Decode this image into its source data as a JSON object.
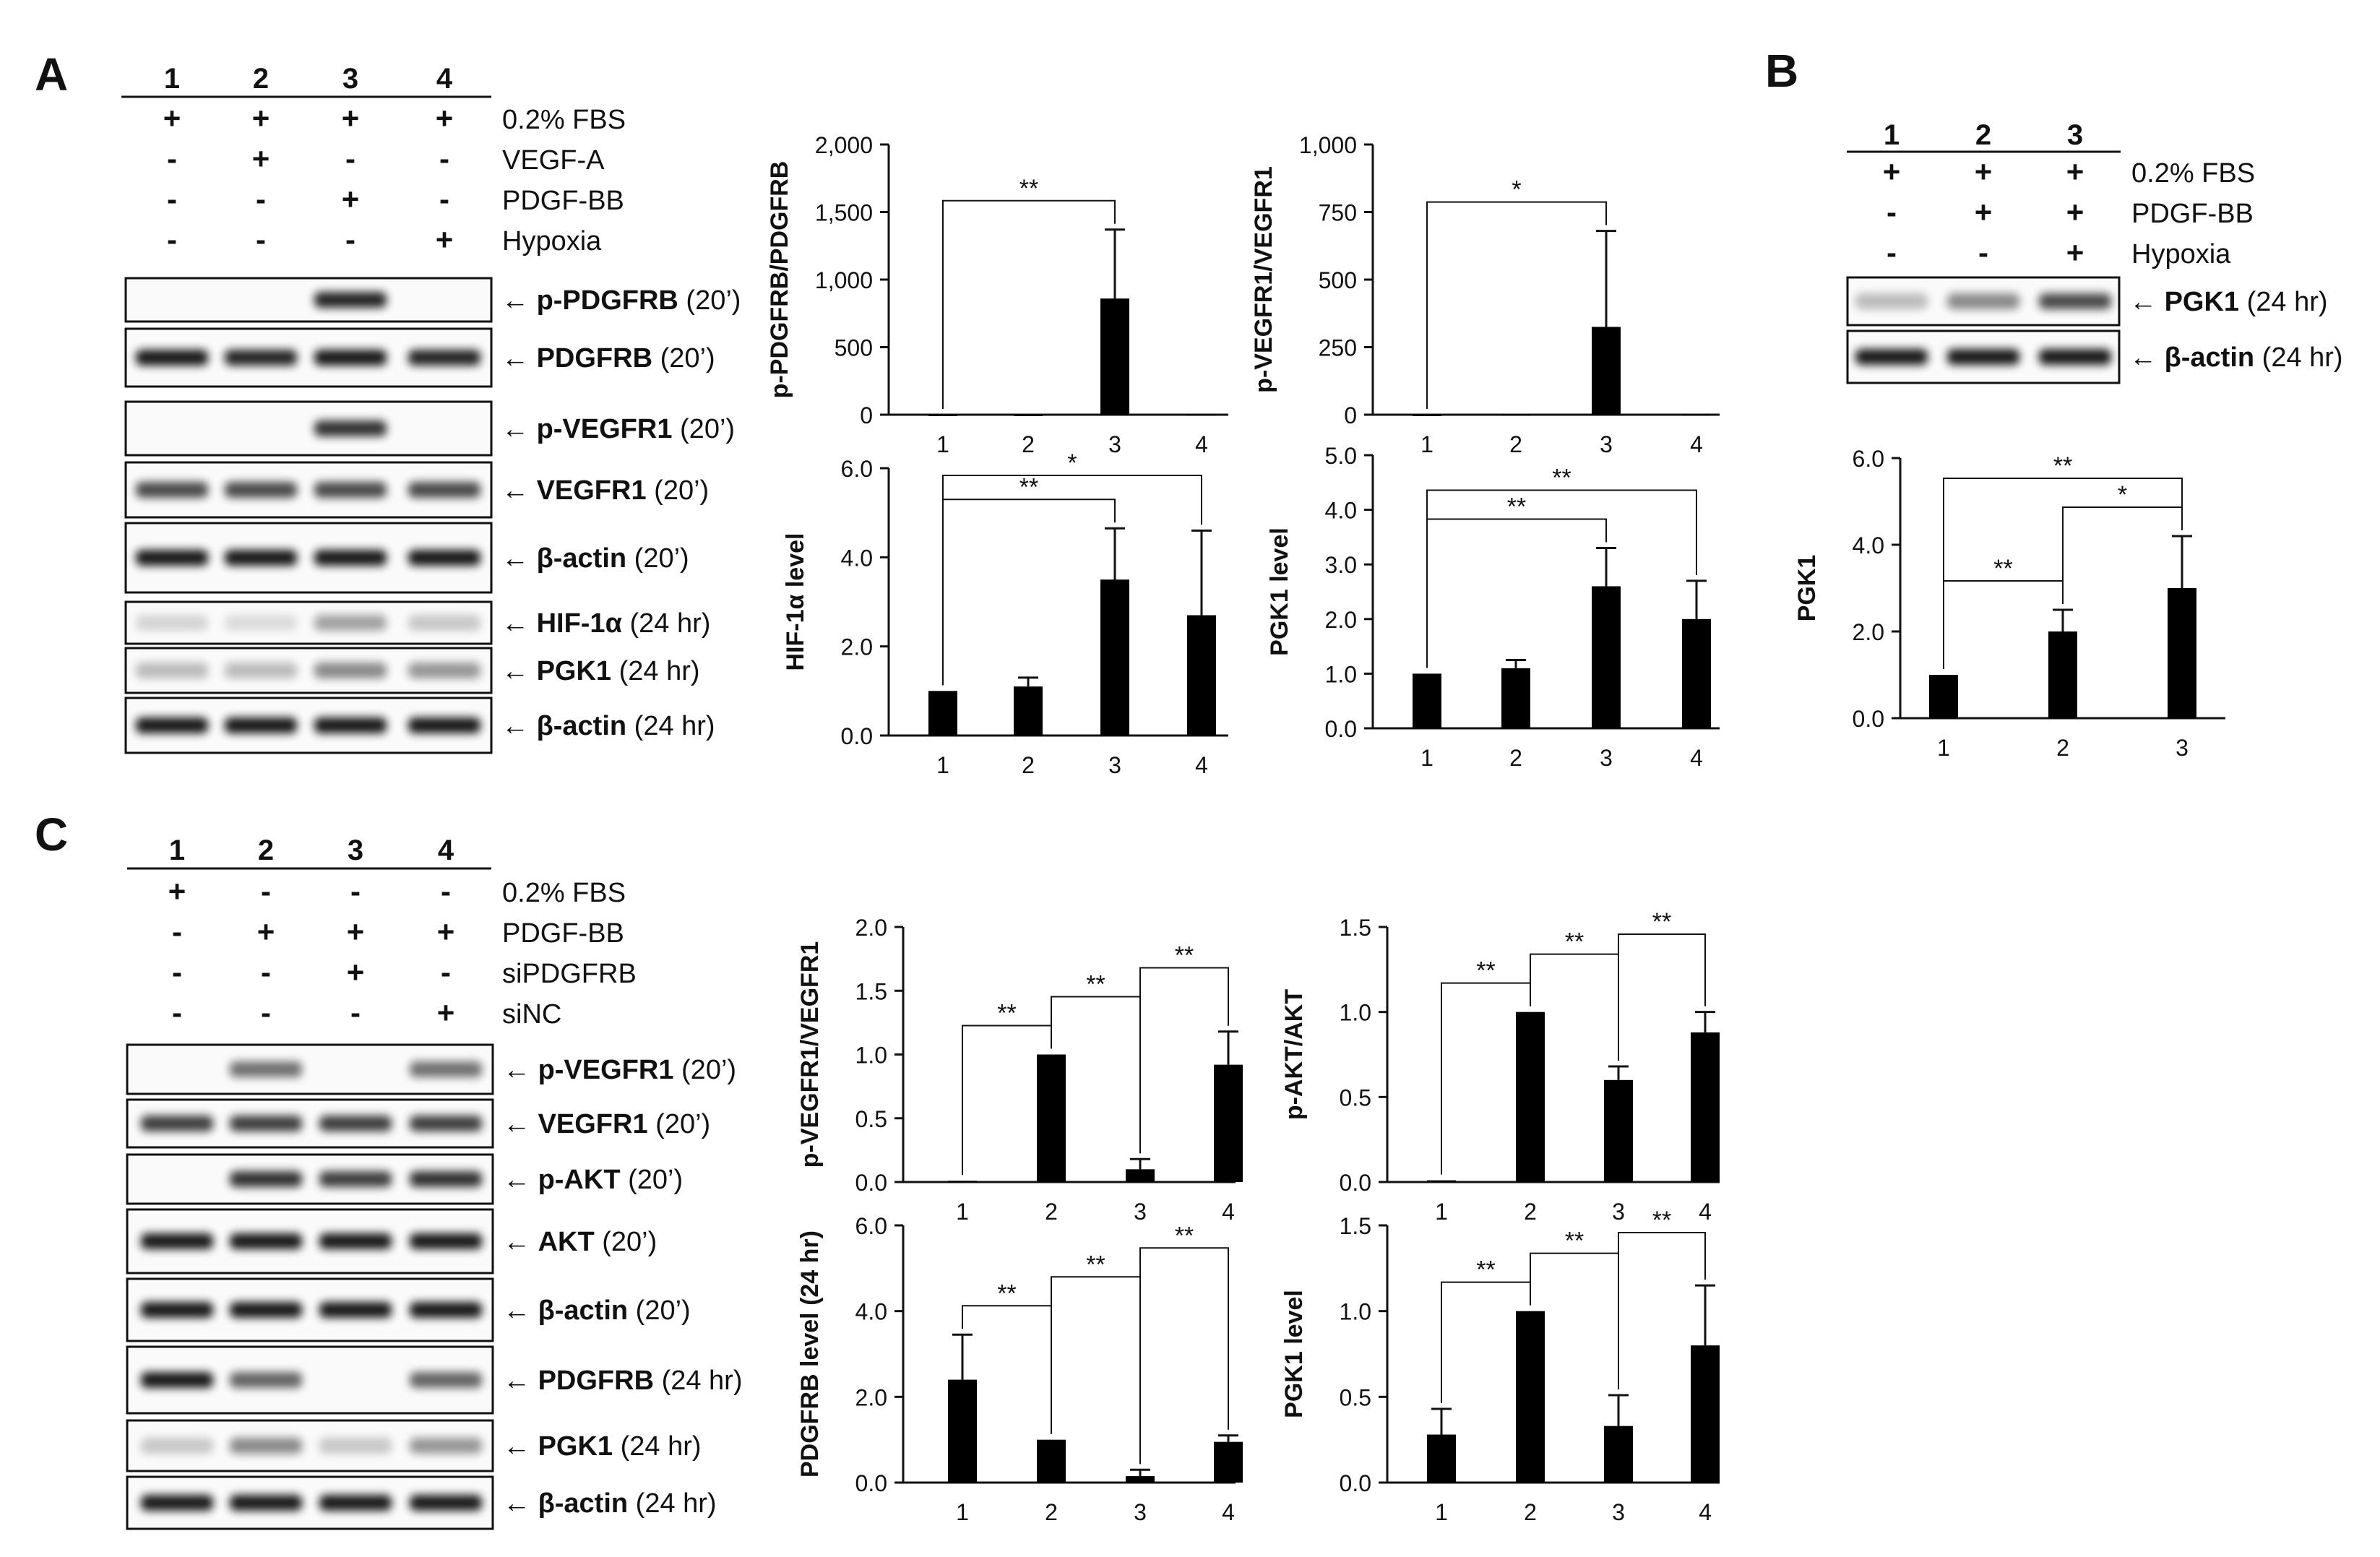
{
  "panel_A": {
    "letter": "A",
    "lanes": [
      "1",
      "2",
      "3",
      "4"
    ],
    "treatments": [
      {
        "name": "0.2% FBS",
        "signs": [
          "+",
          "+",
          "+",
          "+"
        ]
      },
      {
        "name": "VEGF-A",
        "signs": [
          "-",
          "+",
          "-",
          "-"
        ]
      },
      {
        "name": "PDGF-BB",
        "signs": [
          "-",
          "-",
          "+",
          "-"
        ]
      },
      {
        "name": "Hypoxia",
        "signs": [
          "-",
          "-",
          "-",
          "+"
        ]
      }
    ],
    "blots": [
      {
        "label": "p-PDGFRB",
        "time": "(20’)",
        "bands": [
          0,
          0,
          0.85,
          0
        ]
      },
      {
        "label": "PDGFRB",
        "time": "(20’)",
        "bands": [
          0.9,
          0.85,
          0.9,
          0.85
        ]
      },
      {
        "label": "p-VEGFR1",
        "time": "(20’)",
        "bands": [
          0,
          0,
          0.8,
          0
        ]
      },
      {
        "label": "VEGFR1",
        "time": "(20’)",
        "bands": [
          0.7,
          0.7,
          0.7,
          0.7
        ]
      },
      {
        "label": "β-actin",
        "time": "(20’)",
        "bands": [
          0.9,
          0.9,
          0.9,
          0.9
        ]
      },
      {
        "label": "HIF-1α",
        "time": "(24 hr)",
        "bands": [
          0.15,
          0.12,
          0.35,
          0.2
        ]
      },
      {
        "label": "PGK1",
        "time": "(24 hr)",
        "bands": [
          0.25,
          0.25,
          0.45,
          0.4
        ]
      },
      {
        "label": "β-actin",
        "time": "(24 hr)",
        "bands": [
          0.9,
          0.9,
          0.9,
          0.9
        ]
      }
    ]
  },
  "panel_B": {
    "letter": "B",
    "lanes": [
      "1",
      "2",
      "3"
    ],
    "treatments": [
      {
        "name": "0.2% FBS",
        "signs": [
          "+",
          "+",
          "+"
        ]
      },
      {
        "name": "PDGF-BB",
        "signs": [
          "-",
          "+",
          "+"
        ]
      },
      {
        "name": "Hypoxia",
        "signs": [
          "-",
          "-",
          "+"
        ]
      }
    ],
    "blots": [
      {
        "label": "PGK1",
        "time": "(24 hr)",
        "bands": [
          0.25,
          0.45,
          0.7
        ]
      },
      {
        "label": "β-actin",
        "time": "(24 hr)",
        "bands": [
          0.9,
          0.9,
          0.9
        ]
      }
    ]
  },
  "panel_C": {
    "letter": "C",
    "lanes": [
      "1",
      "2",
      "3",
      "4"
    ],
    "treatments": [
      {
        "name": "0.2% FBS",
        "signs": [
          "+",
          "-",
          "-",
          "-"
        ]
      },
      {
        "name": "PDGF-BB",
        "signs": [
          "-",
          "+",
          "+",
          "+"
        ]
      },
      {
        "name": "siPDGFRB",
        "signs": [
          "-",
          "-",
          "+",
          "-"
        ]
      },
      {
        "name": "siNC",
        "signs": [
          "-",
          "-",
          "-",
          "+"
        ]
      }
    ],
    "blots": [
      {
        "label": "p-VEGFR1",
        "time": "(20’)",
        "bands": [
          0,
          0.55,
          0,
          0.55
        ]
      },
      {
        "label": "VEGFR1",
        "time": "(20’)",
        "bands": [
          0.75,
          0.75,
          0.75,
          0.75
        ]
      },
      {
        "label": "p-AKT",
        "time": "(20’)",
        "bands": [
          0,
          0.8,
          0.75,
          0.8
        ]
      },
      {
        "label": "AKT",
        "time": "(20’)",
        "bands": [
          0.9,
          0.9,
          0.9,
          0.9
        ]
      },
      {
        "label": "β-actin",
        "time": "(20’)",
        "bands": [
          0.9,
          0.9,
          0.9,
          0.9
        ]
      },
      {
        "label": "PDGFRB",
        "time": "(24 hr)",
        "bands": [
          0.9,
          0.6,
          0,
          0.6
        ]
      },
      {
        "label": "PGK1",
        "time": "(24 hr)",
        "bands": [
          0.2,
          0.45,
          0.2,
          0.4
        ]
      },
      {
        "label": "β-actin",
        "time": "(24 hr)",
        "bands": [
          0.9,
          0.9,
          0.9,
          0.9
        ]
      }
    ]
  },
  "chart_data": [
    {
      "id": "A1",
      "type": "bar",
      "categories": [
        "1",
        "2",
        "3",
        "4"
      ],
      "values": [
        0,
        0,
        860,
        5
      ],
      "errors": [
        0,
        0,
        510,
        0
      ],
      "ylabel": "p-PDGFRB/PDGFRB",
      "ylim": [
        0,
        2000
      ],
      "yticks": [
        "0",
        "500",
        "1,000",
        "1,500",
        "2,000"
      ],
      "significance": [
        {
          "from": 1,
          "to": 3,
          "label": "**"
        }
      ]
    },
    {
      "id": "A2",
      "type": "bar",
      "categories": [
        "1",
        "2",
        "3",
        "4"
      ],
      "values": [
        0,
        2,
        325,
        3
      ],
      "errors": [
        0,
        0,
        355,
        0
      ],
      "ylabel": "p-VEGFR1/VEGFR1",
      "ylim": [
        0,
        1000
      ],
      "yticks": [
        "0",
        "250",
        "500",
        "750",
        "1,000"
      ],
      "significance": [
        {
          "from": 1,
          "to": 3,
          "label": "*"
        }
      ]
    },
    {
      "id": "A3",
      "type": "bar",
      "categories": [
        "1",
        "2",
        "3",
        "4"
      ],
      "values": [
        1.0,
        1.1,
        3.5,
        2.7
      ],
      "errors": [
        0,
        0.2,
        1.15,
        1.9
      ],
      "ylabel": "HIF-1α level",
      "ylim": [
        0,
        6
      ],
      "yticks": [
        "0.0",
        "2.0",
        "4.0",
        "6.0"
      ],
      "significance": [
        {
          "from": 1,
          "to": 3,
          "label": "**"
        },
        {
          "from": 1,
          "to": 4,
          "label": "*"
        }
      ]
    },
    {
      "id": "A4",
      "type": "bar",
      "categories": [
        "1",
        "2",
        "3",
        "4"
      ],
      "values": [
        1.0,
        1.1,
        2.6,
        2.0
      ],
      "errors": [
        0,
        0.15,
        0.7,
        0.7
      ],
      "ylabel": "PGK1 level",
      "ylim": [
        0,
        5
      ],
      "yticks": [
        "0.0",
        "1.0",
        "2.0",
        "3.0",
        "4.0",
        "5.0"
      ],
      "significance": [
        {
          "from": 1,
          "to": 3,
          "label": "**"
        },
        {
          "from": 1,
          "to": 4,
          "label": "**"
        }
      ]
    },
    {
      "id": "B1",
      "type": "bar",
      "categories": [
        "1",
        "2",
        "3"
      ],
      "values": [
        1.0,
        2.0,
        3.0
      ],
      "errors": [
        0,
        0.5,
        1.2
      ],
      "ylabel": "PGK1",
      "ylim": [
        0,
        6
      ],
      "yticks": [
        "0.0",
        "2.0",
        "4.0",
        "6.0"
      ],
      "significance": [
        {
          "from": 1,
          "to": 2,
          "label": "**"
        },
        {
          "from": 2,
          "to": 3,
          "label": "*"
        },
        {
          "from": 1,
          "to": 3,
          "label": "**"
        }
      ]
    },
    {
      "id": "C1",
      "type": "bar",
      "categories": [
        "1",
        "2",
        "3",
        "4"
      ],
      "values": [
        0.01,
        1.0,
        0.1,
        0.92
      ],
      "errors": [
        0,
        0,
        0.08,
        0.26
      ],
      "ylabel": "p-VEGFR1/VEGFR1",
      "ylim": [
        0,
        2
      ],
      "yticks": [
        "0.0",
        "0.5",
        "1.0",
        "1.5",
        "2.0"
      ],
      "significance": [
        {
          "from": 1,
          "to": 2,
          "label": "**"
        },
        {
          "from": 2,
          "to": 3,
          "label": "**"
        },
        {
          "from": 3,
          "to": 4,
          "label": "**"
        }
      ]
    },
    {
      "id": "C2",
      "type": "bar",
      "categories": [
        "1",
        "2",
        "3",
        "4"
      ],
      "values": [
        0.01,
        1.0,
        0.6,
        0.88
      ],
      "errors": [
        0,
        0,
        0.08,
        0.12
      ],
      "ylabel": "p-AKT/AKT",
      "ylim": [
        0,
        1.5
      ],
      "yticks": [
        "0.0",
        "0.5",
        "1.0",
        "1.5"
      ],
      "significance": [
        {
          "from": 1,
          "to": 2,
          "label": "**"
        },
        {
          "from": 2,
          "to": 3,
          "label": "**"
        },
        {
          "from": 3,
          "to": 4,
          "label": "**"
        }
      ]
    },
    {
      "id": "C3",
      "type": "bar",
      "categories": [
        "1",
        "2",
        "3",
        "4"
      ],
      "values": [
        2.4,
        1.0,
        0.15,
        0.95
      ],
      "errors": [
        1.05,
        0,
        0.15,
        0.15
      ],
      "ylabel": "PDGFRB level (24 hr)",
      "ylim": [
        0,
        6
      ],
      "yticks": [
        "0.0",
        "2.0",
        "4.0",
        "6.0"
      ],
      "significance": [
        {
          "from": 1,
          "to": 2,
          "label": "**"
        },
        {
          "from": 2,
          "to": 3,
          "label": "**"
        },
        {
          "from": 3,
          "to": 4,
          "label": "**"
        }
      ]
    },
    {
      "id": "C4",
      "type": "bar",
      "categories": [
        "1",
        "2",
        "3",
        "4"
      ],
      "values": [
        0.28,
        1.0,
        0.33,
        0.8
      ],
      "errors": [
        0.15,
        0,
        0.18,
        0.35
      ],
      "ylabel": "PGK1 level",
      "ylim": [
        0,
        1.5
      ],
      "yticks": [
        "0.0",
        "0.5",
        "1.0",
        "1.5"
      ],
      "significance": [
        {
          "from": 1,
          "to": 2,
          "label": "**"
        },
        {
          "from": 2,
          "to": 3,
          "label": "**"
        },
        {
          "from": 3,
          "to": 4,
          "label": "**"
        }
      ]
    }
  ]
}
